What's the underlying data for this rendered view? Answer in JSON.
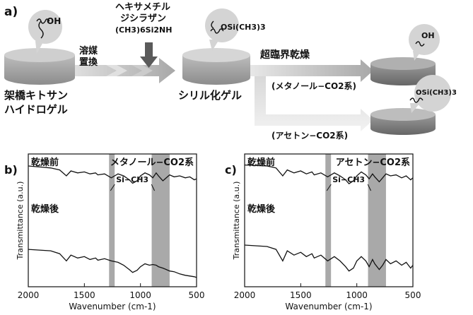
{
  "panel_a": {
    "label": "a)",
    "reagent_line1": "ヘキサメチル",
    "reagent_line2": "ジシラザン",
    "reagent_formula": "(CH3)6Si2NH",
    "solvent_exchange_1": "溶媒",
    "solvent_exchange_2": "置換",
    "supercritical_drying": "超臨界乾燥",
    "gel_left_line1": "架橋キトサン",
    "gel_left_line2": "ハイドロゲル",
    "gel_middle": "シリル化ゲル",
    "route_methanol": "(メタノール−CO2系)",
    "route_acetone": "(アセトン−CO2系)",
    "bubble_oh_1": "OH",
    "bubble_osi_1": "OSi(CH3)3",
    "bubble_oh_2": "OH",
    "bubble_osi_2": "OSi(CH3)3"
  },
  "chart_data": [
    {
      "panel": "b)",
      "type": "line",
      "title": "メタノール−CO2系",
      "xlabel": "Wavenumber (cm-1)",
      "ylabel": "Transmittance (a.u.)",
      "xlim": [
        2000,
        500
      ],
      "xticks": [
        2000,
        1500,
        1000,
        500
      ],
      "annotation": "Si−CH3",
      "highlight_bands": [
        [
          1280,
          1230
        ],
        [
          900,
          740
        ]
      ],
      "series": [
        {
          "name": "乾燥前",
          "x": [
            2000,
            1900,
            1800,
            1720,
            1660,
            1620,
            1560,
            1500,
            1450,
            1400,
            1380,
            1320,
            1260,
            1200,
            1150,
            1100,
            1070,
            1030,
            1000,
            960,
            920,
            890,
            860,
            840,
            800,
            770,
            740,
            700,
            650,
            600,
            560,
            520,
            500
          ],
          "y": [
            0.9,
            0.88,
            0.86,
            0.82,
            0.7,
            0.8,
            0.76,
            0.78,
            0.74,
            0.76,
            0.72,
            0.74,
            0.66,
            0.74,
            0.7,
            0.62,
            0.55,
            0.6,
            0.7,
            0.76,
            0.72,
            0.66,
            0.76,
            0.7,
            0.6,
            0.66,
            0.72,
            0.68,
            0.7,
            0.66,
            0.68,
            0.62,
            0.64
          ]
        },
        {
          "name": "乾燥後",
          "x": [
            2000,
            1900,
            1800,
            1720,
            1660,
            1620,
            1560,
            1500,
            1450,
            1400,
            1380,
            1320,
            1260,
            1200,
            1150,
            1100,
            1070,
            1030,
            1000,
            960,
            920,
            890,
            860,
            840,
            800,
            770,
            740,
            700,
            650,
            600,
            560,
            520,
            500
          ],
          "y": [
            0.46,
            0.45,
            0.44,
            0.4,
            0.3,
            0.38,
            0.34,
            0.36,
            0.32,
            0.34,
            0.31,
            0.33,
            0.3,
            0.28,
            0.24,
            0.18,
            0.14,
            0.17,
            0.22,
            0.26,
            0.24,
            0.25,
            0.24,
            0.22,
            0.2,
            0.18,
            0.16,
            0.15,
            0.12,
            0.1,
            0.09,
            0.08,
            0.07
          ]
        }
      ]
    },
    {
      "panel": "c)",
      "type": "line",
      "title": "アセトン−CO2系",
      "xlabel": "Wavenumber (cm-1)",
      "ylabel": "Transmittance (a.u.)",
      "xlim": [
        2000,
        500
      ],
      "xticks": [
        2000,
        1500,
        1000,
        500
      ],
      "annotation": "Si−CH3",
      "highlight_bands": [
        [
          1280,
          1230
        ],
        [
          900,
          740
        ]
      ],
      "series": [
        {
          "name": "乾燥前",
          "x": [
            2000,
            1900,
            1800,
            1720,
            1660,
            1620,
            1560,
            1500,
            1450,
            1400,
            1380,
            1320,
            1260,
            1200,
            1150,
            1100,
            1070,
            1030,
            1000,
            960,
            920,
            890,
            860,
            840,
            800,
            770,
            740,
            700,
            650,
            600,
            560,
            520,
            500
          ],
          "y": [
            0.92,
            0.91,
            0.9,
            0.86,
            0.7,
            0.82,
            0.76,
            0.8,
            0.74,
            0.78,
            0.72,
            0.76,
            0.68,
            0.76,
            0.7,
            0.62,
            0.54,
            0.6,
            0.7,
            0.78,
            0.72,
            0.64,
            0.74,
            0.68,
            0.58,
            0.66,
            0.74,
            0.7,
            0.72,
            0.66,
            0.7,
            0.62,
            0.66
          ]
        },
        {
          "name": "乾燥後",
          "x": [
            2000,
            1900,
            1800,
            1720,
            1660,
            1620,
            1560,
            1500,
            1450,
            1400,
            1380,
            1320,
            1260,
            1200,
            1150,
            1100,
            1070,
            1030,
            1000,
            960,
            920,
            890,
            860,
            840,
            800,
            770,
            740,
            700,
            650,
            600,
            560,
            520,
            500
          ],
          "y": [
            0.52,
            0.51,
            0.5,
            0.46,
            0.3,
            0.44,
            0.38,
            0.42,
            0.36,
            0.4,
            0.34,
            0.38,
            0.3,
            0.36,
            0.3,
            0.22,
            0.16,
            0.2,
            0.3,
            0.36,
            0.3,
            0.22,
            0.32,
            0.26,
            0.18,
            0.24,
            0.32,
            0.26,
            0.3,
            0.24,
            0.28,
            0.2,
            0.24
          ]
        }
      ]
    }
  ]
}
